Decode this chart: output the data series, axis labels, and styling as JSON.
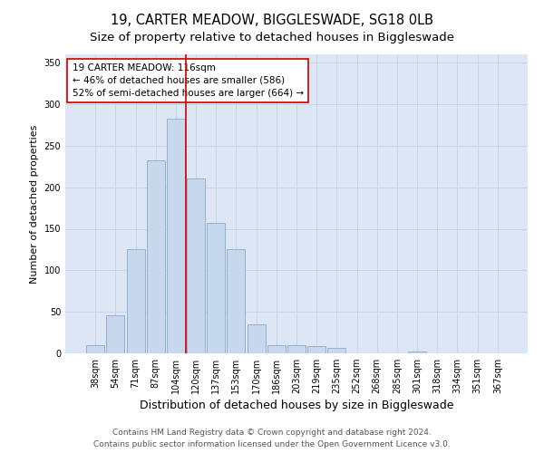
{
  "title_line1": "19, CARTER MEADOW, BIGGLESWADE, SG18 0LB",
  "title_line2": "Size of property relative to detached houses in Biggleswade",
  "xlabel": "Distribution of detached houses by size in Biggleswade",
  "ylabel": "Number of detached properties",
  "categories": [
    "38sqm",
    "54sqm",
    "71sqm",
    "87sqm",
    "104sqm",
    "120sqm",
    "137sqm",
    "153sqm",
    "170sqm",
    "186sqm",
    "203sqm",
    "219sqm",
    "235sqm",
    "252sqm",
    "268sqm",
    "285sqm",
    "301sqm",
    "318sqm",
    "334sqm",
    "351sqm",
    "367sqm"
  ],
  "values": [
    10,
    46,
    126,
    232,
    283,
    210,
    157,
    125,
    35,
    10,
    10,
    9,
    7,
    0,
    0,
    0,
    2,
    0,
    0,
    0,
    0
  ],
  "bar_color": "#c8d8ec",
  "bar_edge_color": "#8aaac8",
  "vline_color": "#cc0000",
  "vline_x_index": 4.5,
  "annotation_text": "19 CARTER MEADOW: 116sqm\n← 46% of detached houses are smaller (586)\n52% of semi-detached houses are larger (664) →",
  "annotation_box_color": "white",
  "annotation_box_edge_color": "#cc0000",
  "ylim": [
    0,
    360
  ],
  "yticks": [
    0,
    50,
    100,
    150,
    200,
    250,
    300,
    350
  ],
  "grid_color": "#c8d4e8",
  "background_color": "#dde6f5",
  "footer_line1": "Contains HM Land Registry data © Crown copyright and database right 2024.",
  "footer_line2": "Contains public sector information licensed under the Open Government Licence v3.0.",
  "title_fontsize": 10.5,
  "subtitle_fontsize": 9.5,
  "xlabel_fontsize": 9,
  "ylabel_fontsize": 8,
  "tick_fontsize": 7,
  "annotation_fontsize": 7.5,
  "footer_fontsize": 6.5
}
